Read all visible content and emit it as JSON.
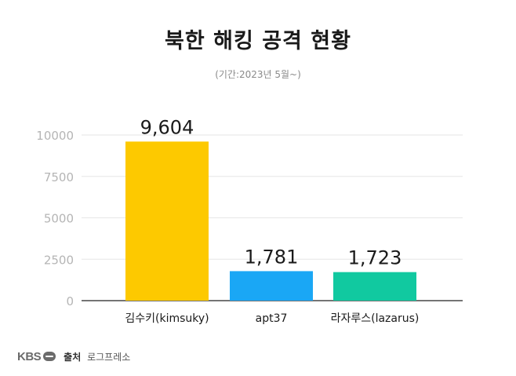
{
  "header": {
    "title": "북한 해킹 공격 현황",
    "subtitle": "(기간:2023년 5월~)"
  },
  "footer": {
    "logo_text": "KBS",
    "source_label": "출처",
    "source_value": "로그프레소"
  },
  "chart_data": {
    "type": "bar",
    "categories": [
      "김수키(kimsuky)",
      "apt37",
      "라자루스(lazarus)"
    ],
    "values": [
      9604,
      1781,
      1723
    ],
    "value_labels": [
      "9,604",
      "1,781",
      "1,723"
    ],
    "colors": [
      "#fdc900",
      "#1aa7f5",
      "#11c9a0"
    ],
    "ylim": [
      0,
      10000
    ],
    "yticks": [
      0,
      2500,
      5000,
      7500,
      10000
    ],
    "grid": true,
    "legend": "none",
    "xlabel": "",
    "ylabel": ""
  }
}
